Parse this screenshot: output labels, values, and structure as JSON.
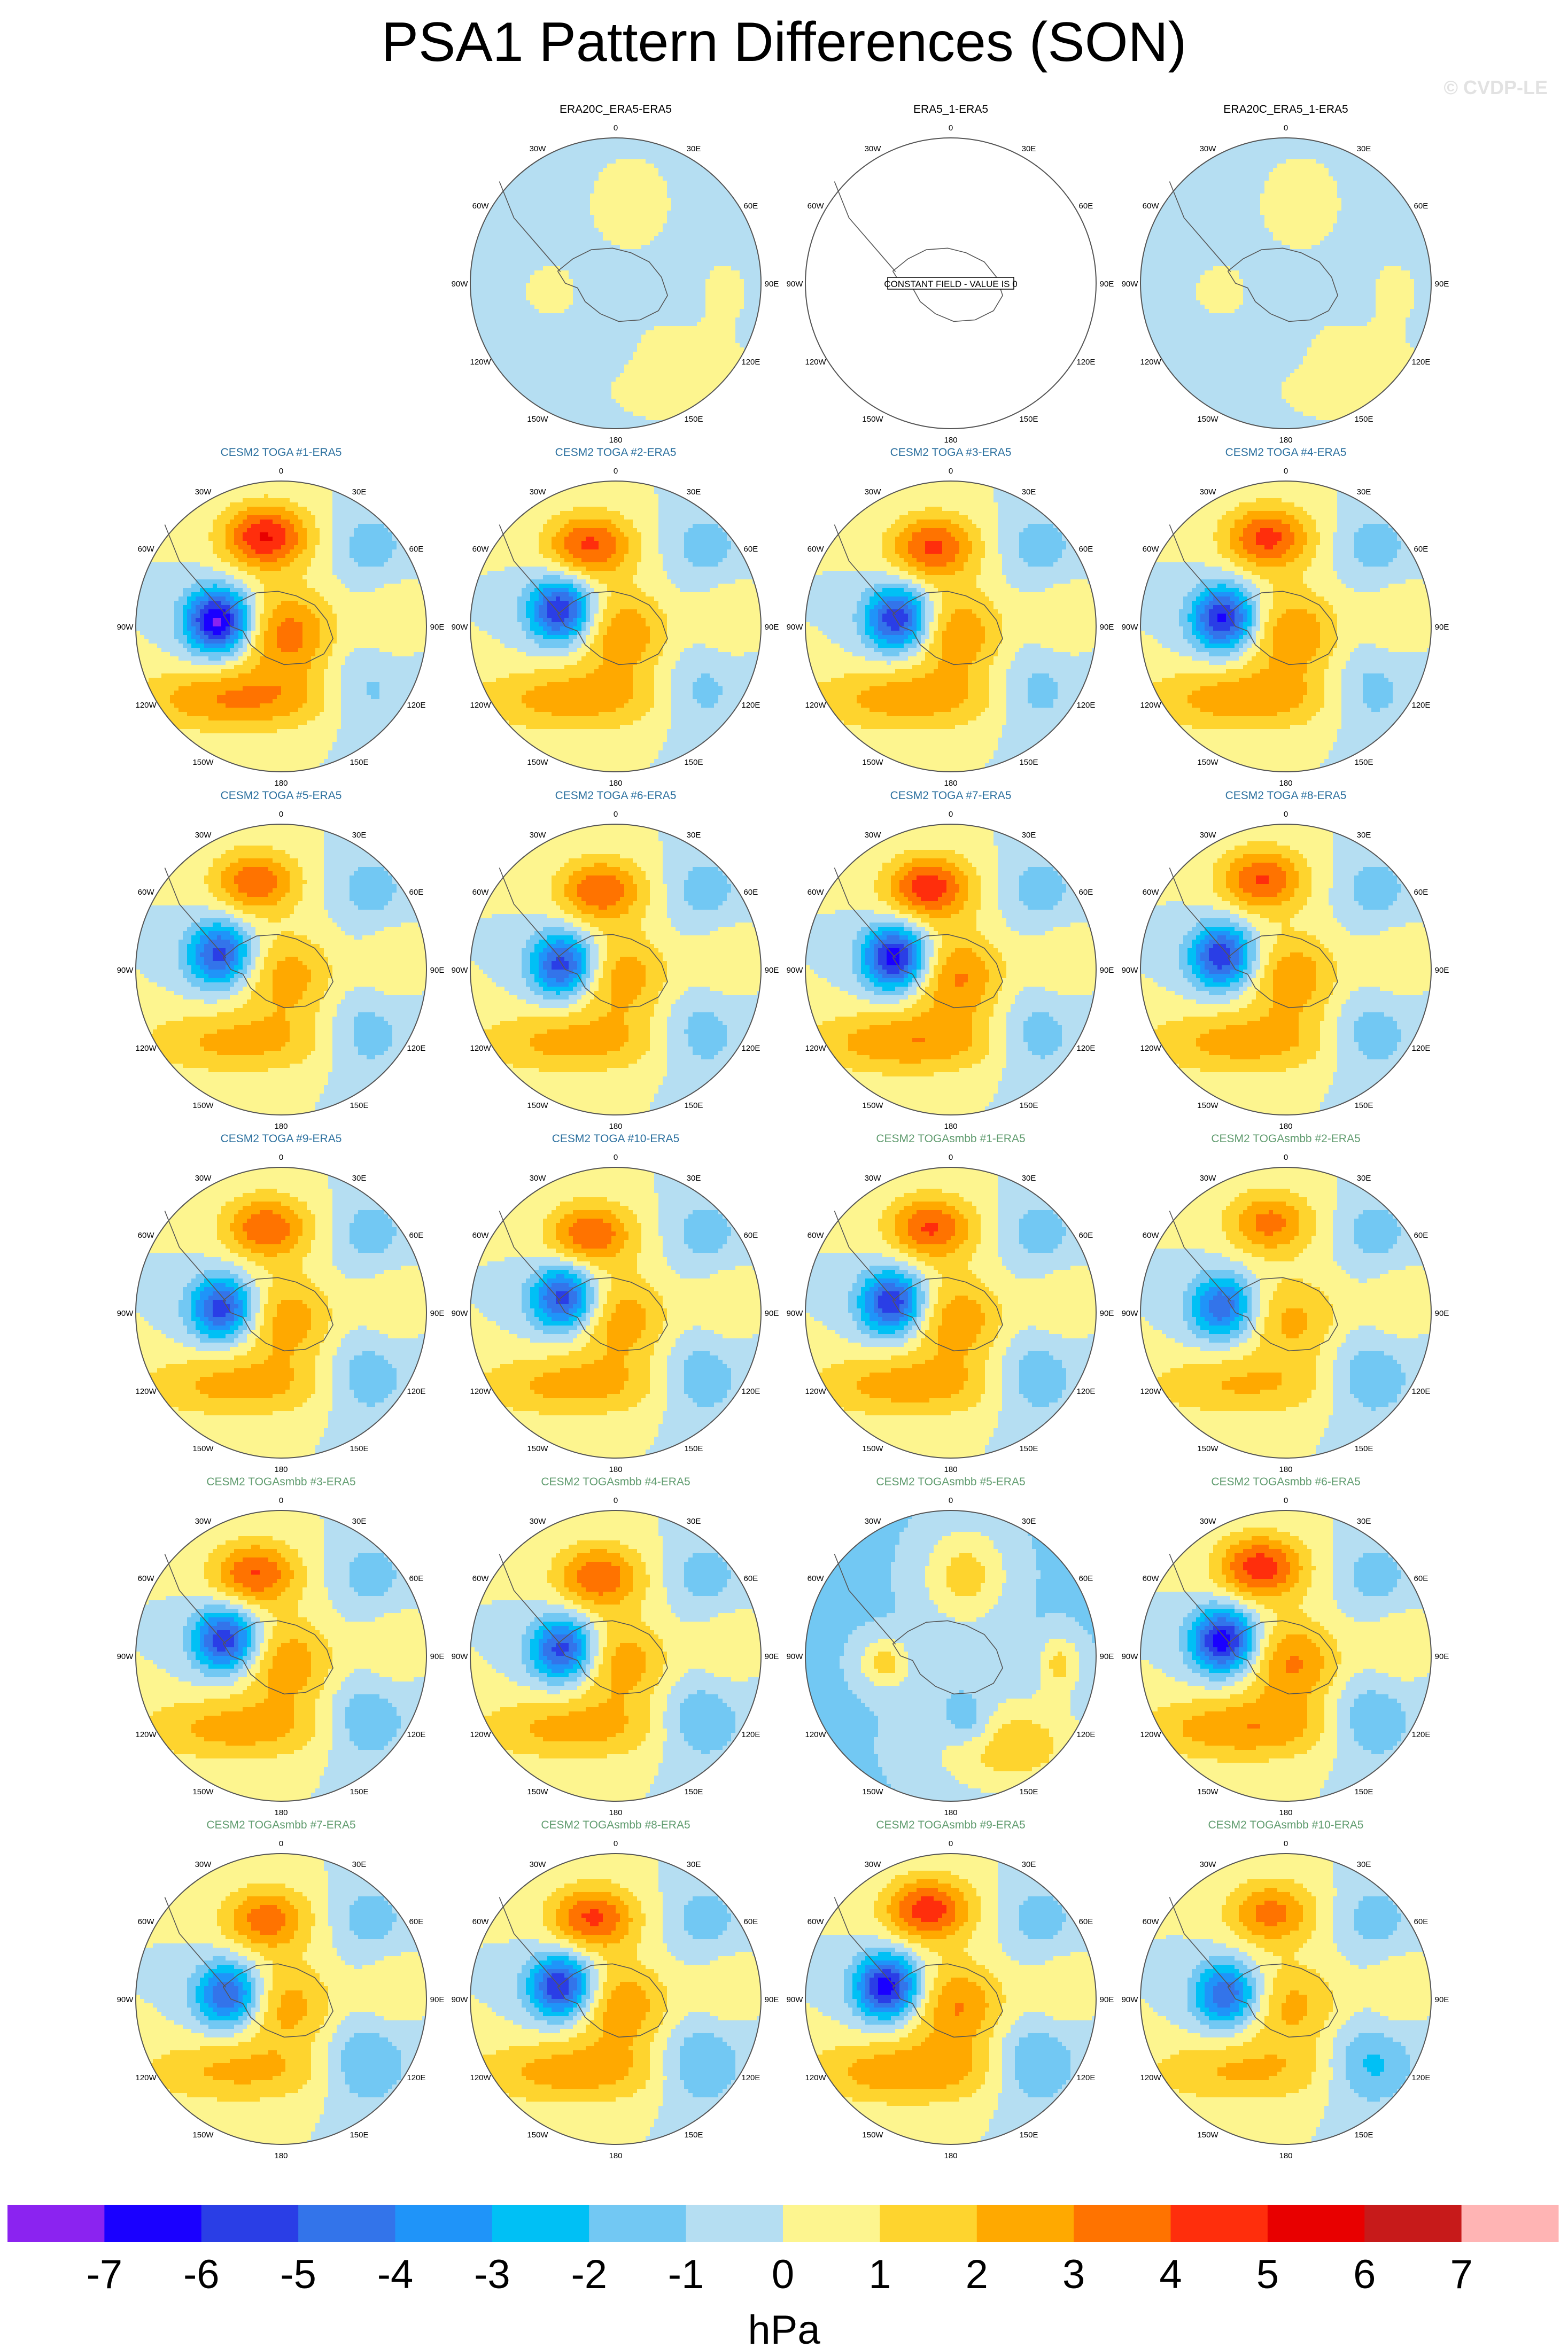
{
  "title": "PSA1 Pattern Differences (SON)",
  "watermark": "© CVDP-LE",
  "map_labels": {
    "meridians": [
      "0",
      "30E",
      "60E",
      "90E",
      "120E",
      "150E",
      "180",
      "150W",
      "120W",
      "90W",
      "60W",
      "30W"
    ],
    "constant_field_note": "CONSTANT FIELD - VALUE IS 0"
  },
  "panels": [
    {
      "row": 0,
      "col": 1,
      "title": "ERA20C_ERA5-ERA5",
      "title_color": "#000000",
      "type": "weak",
      "amp": 0.45
    },
    {
      "row": 0,
      "col": 2,
      "title": "ERA5_1-ERA5",
      "title_color": "#000000",
      "type": "constant",
      "amp": 0
    },
    {
      "row": 0,
      "col": 3,
      "title": "ERA20C_ERA5_1-ERA5",
      "title_color": "#000000",
      "type": "weak",
      "amp": 0.45
    },
    {
      "row": 1,
      "col": 0,
      "title": "CESM2 TOGA #1-ERA5",
      "title_color": "#2a6f9e",
      "type": "psa",
      "amp": 6.5
    },
    {
      "row": 1,
      "col": 1,
      "title": "CESM2 TOGA #2-ERA5",
      "title_color": "#2a6f9e",
      "type": "psa",
      "amp": 5.4
    },
    {
      "row": 1,
      "col": 2,
      "title": "CESM2 TOGA #3-ERA5",
      "title_color": "#2a6f9e",
      "type": "psa",
      "amp": 5.4
    },
    {
      "row": 1,
      "col": 3,
      "title": "CESM2 TOGA #4-ERA5",
      "title_color": "#2a6f9e",
      "type": "psa",
      "amp": 5.6
    },
    {
      "row": 2,
      "col": 0,
      "title": "CESM2 TOGA #5-ERA5",
      "title_color": "#2a6f9e",
      "type": "psa",
      "amp": 4.8
    },
    {
      "row": 2,
      "col": 1,
      "title": "CESM2 TOGA #6-ERA5",
      "title_color": "#2a6f9e",
      "type": "psa",
      "amp": 5.0
    },
    {
      "row": 2,
      "col": 2,
      "title": "CESM2 TOGA #7-ERA5",
      "title_color": "#2a6f9e",
      "type": "psa",
      "amp": 6.0
    },
    {
      "row": 2,
      "col": 3,
      "title": "CESM2 TOGA #8-ERA5",
      "title_color": "#2a6f9e",
      "type": "psa",
      "amp": 5.2
    },
    {
      "row": 3,
      "col": 0,
      "title": "CESM2 TOGA #9-ERA5",
      "title_color": "#2a6f9e",
      "type": "psa",
      "amp": 5.0
    },
    {
      "row": 3,
      "col": 1,
      "title": "CESM2 TOGA #10-ERA5",
      "title_color": "#2a6f9e",
      "type": "psa",
      "amp": 5.0
    },
    {
      "row": 3,
      "col": 2,
      "title": "CESM2 TOGAsmbb #1-ERA5",
      "title_color": "#5f9b6e",
      "type": "psa",
      "amp": 5.3
    },
    {
      "row": 3,
      "col": 3,
      "title": "CESM2 TOGAsmbb #2-ERA5",
      "title_color": "#5f9b6e",
      "type": "psa",
      "amp": 4.3
    },
    {
      "row": 4,
      "col": 0,
      "title": "CESM2 TOGAsmbb #3-ERA5",
      "title_color": "#5f9b6e",
      "type": "psa",
      "amp": 5.2
    },
    {
      "row": 4,
      "col": 1,
      "title": "CESM2 TOGAsmbb #4-ERA5",
      "title_color": "#5f9b6e",
      "type": "psa",
      "amp": 5.0
    },
    {
      "row": 4,
      "col": 2,
      "title": "CESM2 TOGAsmbb #5-ERA5",
      "title_color": "#5f9b6e",
      "type": "weak",
      "amp": 1.3
    },
    {
      "row": 4,
      "col": 3,
      "title": "CESM2 TOGAsmbb #6-ERA5",
      "title_color": "#5f9b6e",
      "type": "psa",
      "amp": 6.0
    },
    {
      "row": 5,
      "col": 0,
      "title": "CESM2 TOGAsmbb #7-ERA5",
      "title_color": "#5f9b6e",
      "type": "psa",
      "amp": 4.6
    },
    {
      "row": 5,
      "col": 1,
      "title": "CESM2 TOGAsmbb #8-ERA5",
      "title_color": "#5f9b6e",
      "type": "psa",
      "amp": 5.4
    },
    {
      "row": 5,
      "col": 2,
      "title": "CESM2 TOGAsmbb #9-ERA5",
      "title_color": "#5f9b6e",
      "type": "psa",
      "amp": 5.9
    },
    {
      "row": 5,
      "col": 3,
      "title": "CESM2 TOGAsmbb #10-ERA5",
      "title_color": "#5f9b6e",
      "type": "psa",
      "amp": 4.4
    }
  ],
  "colorbar": {
    "labels": [
      "-7",
      "-6",
      "-5",
      "-4",
      "-3",
      "-2",
      "-1",
      "0",
      "1",
      "2",
      "3",
      "4",
      "5",
      "6",
      "7"
    ],
    "colors": [
      "#8b23f0",
      "#1a00ff",
      "#2a3ee6",
      "#3374ea",
      "#1f94f9",
      "#00c0f5",
      "#72c8f3",
      "#b5def2",
      "#fdf58f",
      "#fed42e",
      "#ffa900",
      "#ff7300",
      "#ff2e0c",
      "#e80000",
      "#c71a1a",
      "#ffb4b4"
    ],
    "unit": "hPa"
  }
}
